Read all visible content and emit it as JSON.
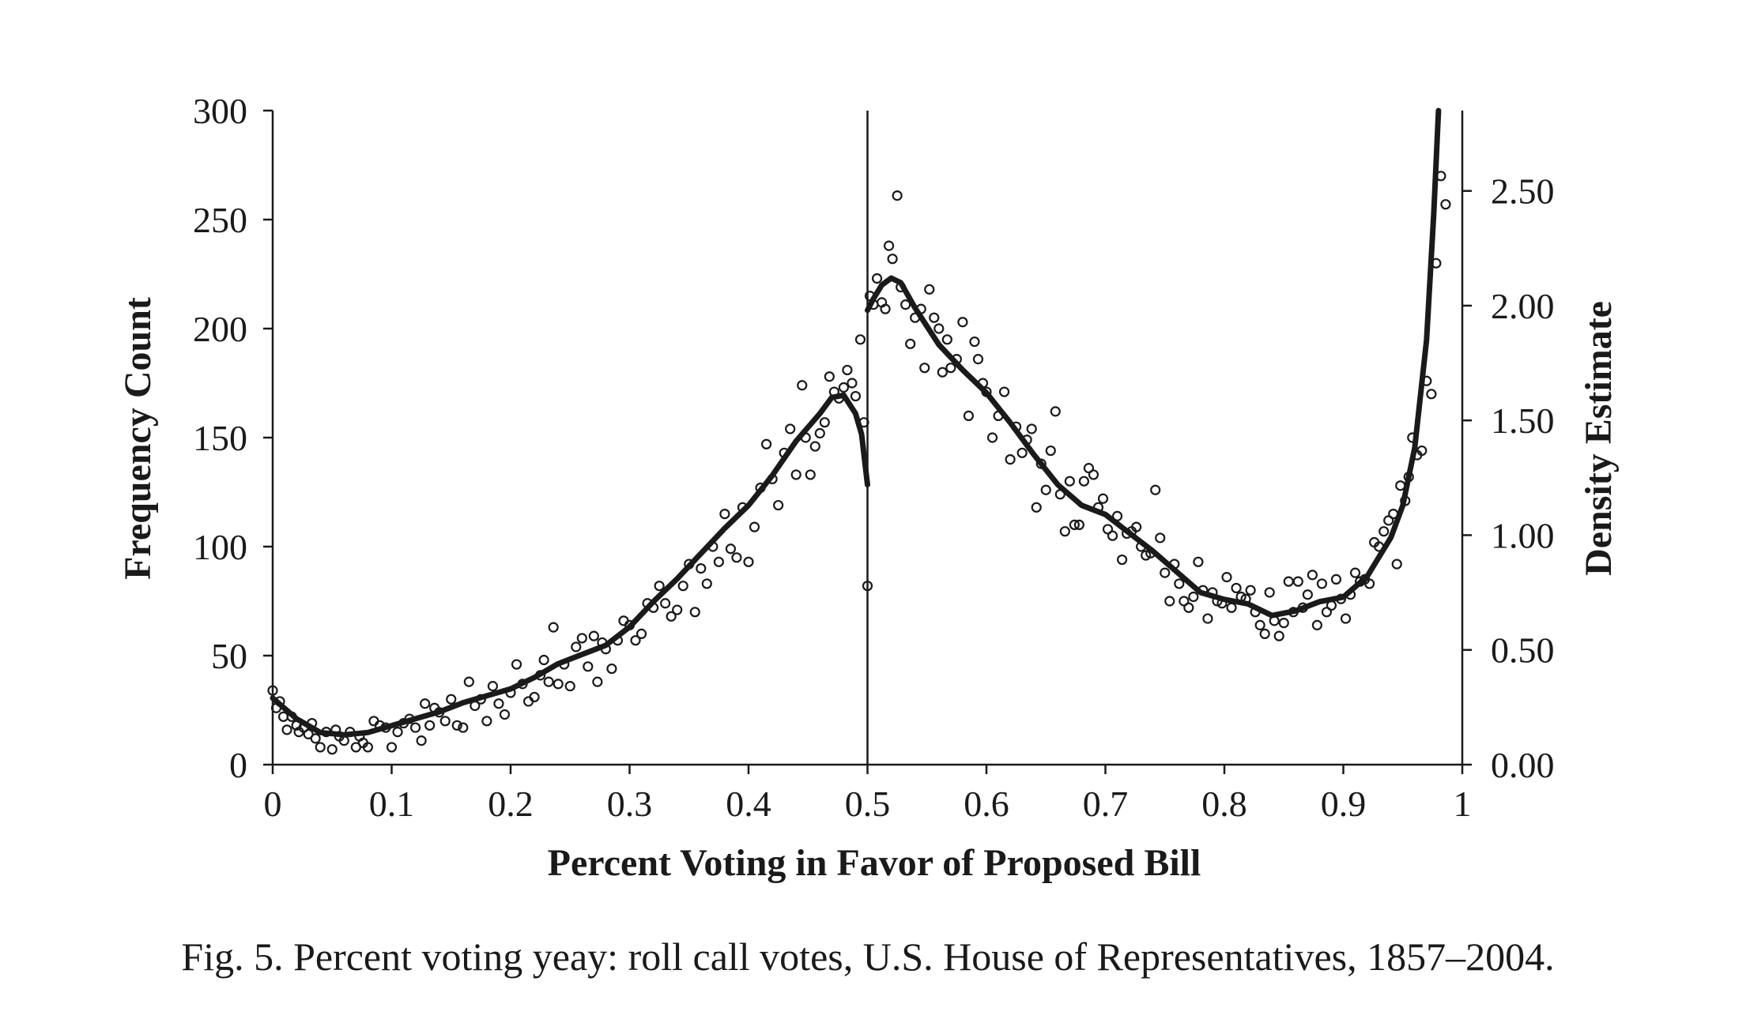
{
  "chart_data": {
    "type": "scatter",
    "caption": "Fig. 5. Percent voting yeay: roll call votes, U.S. House of Representatives, 1857–2004.",
    "xlabel": "Percent Voting in Favor of Proposed Bill",
    "ylabel": "Frequency Count",
    "y2label": "Density Estimate",
    "xlim": [
      0,
      1
    ],
    "ylim": [
      0,
      300
    ],
    "y2lim": [
      0,
      2.85
    ],
    "x_ticks": [
      "0",
      "0.1",
      "0.2",
      "0.3",
      "0.4",
      "0.5",
      "0.6",
      "0.7",
      "0.8",
      "0.9",
      "1"
    ],
    "y_ticks": [
      "0",
      "50",
      "100",
      "150",
      "200",
      "250",
      "300"
    ],
    "y2_ticks": [
      "0.00",
      "0.50",
      "1.00",
      "1.50",
      "2.00",
      "2.50"
    ],
    "cutoff_x": 0.5,
    "grid": false,
    "series": [
      {
        "kind": "scatter",
        "marker": "open-circle",
        "points": [
          [
            0.0,
            34
          ],
          [
            0.003,
            26
          ],
          [
            0.006,
            29
          ],
          [
            0.009,
            22
          ],
          [
            0.012,
            16
          ],
          [
            0.016,
            22
          ],
          [
            0.02,
            18
          ],
          [
            0.022,
            15
          ],
          [
            0.026,
            17
          ],
          [
            0.03,
            14
          ],
          [
            0.033,
            19
          ],
          [
            0.036,
            12
          ],
          [
            0.04,
            8
          ],
          [
            0.045,
            15
          ],
          [
            0.05,
            7
          ],
          [
            0.053,
            16
          ],
          [
            0.056,
            13
          ],
          [
            0.06,
            11
          ],
          [
            0.065,
            15
          ],
          [
            0.07,
            8
          ],
          [
            0.073,
            13
          ],
          [
            0.076,
            10
          ],
          [
            0.08,
            8
          ],
          [
            0.085,
            20
          ],
          [
            0.09,
            18
          ],
          [
            0.095,
            17
          ],
          [
            0.1,
            8
          ],
          [
            0.105,
            15
          ],
          [
            0.11,
            19
          ],
          [
            0.115,
            21
          ],
          [
            0.12,
            17
          ],
          [
            0.125,
            11
          ],
          [
            0.128,
            28
          ],
          [
            0.132,
            18
          ],
          [
            0.136,
            26
          ],
          [
            0.14,
            24
          ],
          [
            0.145,
            20
          ],
          [
            0.15,
            30
          ],
          [
            0.155,
            18
          ],
          [
            0.16,
            17
          ],
          [
            0.165,
            38
          ],
          [
            0.17,
            27
          ],
          [
            0.175,
            30
          ],
          [
            0.18,
            20
          ],
          [
            0.185,
            36
          ],
          [
            0.19,
            28
          ],
          [
            0.195,
            23
          ],
          [
            0.2,
            33
          ],
          [
            0.205,
            46
          ],
          [
            0.21,
            37
          ],
          [
            0.215,
            29
          ],
          [
            0.22,
            31
          ],
          [
            0.225,
            41
          ],
          [
            0.228,
            48
          ],
          [
            0.232,
            38
          ],
          [
            0.236,
            63
          ],
          [
            0.24,
            37
          ],
          [
            0.245,
            46
          ],
          [
            0.25,
            36
          ],
          [
            0.255,
            54
          ],
          [
            0.26,
            58
          ],
          [
            0.265,
            45
          ],
          [
            0.27,
            59
          ],
          [
            0.273,
            38
          ],
          [
            0.277,
            56
          ],
          [
            0.28,
            53
          ],
          [
            0.285,
            44
          ],
          [
            0.29,
            57
          ],
          [
            0.295,
            66
          ],
          [
            0.3,
            64
          ],
          [
            0.305,
            57
          ],
          [
            0.31,
            60
          ],
          [
            0.315,
            74
          ],
          [
            0.32,
            72
          ],
          [
            0.325,
            82
          ],
          [
            0.33,
            74
          ],
          [
            0.335,
            68
          ],
          [
            0.34,
            71
          ],
          [
            0.345,
            82
          ],
          [
            0.35,
            92
          ],
          [
            0.355,
            70
          ],
          [
            0.36,
            90
          ],
          [
            0.365,
            83
          ],
          [
            0.37,
            100
          ],
          [
            0.375,
            93
          ],
          [
            0.38,
            115
          ],
          [
            0.385,
            99
          ],
          [
            0.39,
            95
          ],
          [
            0.395,
            118
          ],
          [
            0.4,
            93
          ],
          [
            0.405,
            109
          ],
          [
            0.41,
            127
          ],
          [
            0.415,
            147
          ],
          [
            0.42,
            131
          ],
          [
            0.425,
            119
          ],
          [
            0.43,
            143
          ],
          [
            0.435,
            154
          ],
          [
            0.44,
            133
          ],
          [
            0.445,
            174
          ],
          [
            0.448,
            150
          ],
          [
            0.452,
            133
          ],
          [
            0.456,
            146
          ],
          [
            0.46,
            152
          ],
          [
            0.464,
            157
          ],
          [
            0.468,
            178
          ],
          [
            0.472,
            171
          ],
          [
            0.476,
            168
          ],
          [
            0.48,
            173
          ],
          [
            0.483,
            181
          ],
          [
            0.487,
            175
          ],
          [
            0.49,
            169
          ],
          [
            0.494,
            195
          ],
          [
            0.497,
            157
          ],
          [
            0.5,
            82
          ],
          [
            0.502,
            215
          ],
          [
            0.505,
            211
          ],
          [
            0.508,
            223
          ],
          [
            0.512,
            212
          ],
          [
            0.515,
            209
          ],
          [
            0.518,
            238
          ],
          [
            0.521,
            232
          ],
          [
            0.525,
            261
          ],
          [
            0.528,
            219
          ],
          [
            0.532,
            211
          ],
          [
            0.536,
            193
          ],
          [
            0.54,
            205
          ],
          [
            0.545,
            209
          ],
          [
            0.548,
            182
          ],
          [
            0.552,
            218
          ],
          [
            0.556,
            205
          ],
          [
            0.56,
            200
          ],
          [
            0.563,
            180
          ],
          [
            0.567,
            195
          ],
          [
            0.57,
            182
          ],
          [
            0.575,
            186
          ],
          [
            0.58,
            203
          ],
          [
            0.585,
            160
          ],
          [
            0.59,
            194
          ],
          [
            0.593,
            186
          ],
          [
            0.597,
            175
          ],
          [
            0.6,
            171
          ],
          [
            0.605,
            150
          ],
          [
            0.61,
            160
          ],
          [
            0.615,
            171
          ],
          [
            0.62,
            140
          ],
          [
            0.625,
            155
          ],
          [
            0.63,
            143
          ],
          [
            0.634,
            149
          ],
          [
            0.638,
            154
          ],
          [
            0.642,
            118
          ],
          [
            0.646,
            138
          ],
          [
            0.65,
            126
          ],
          [
            0.654,
            144
          ],
          [
            0.658,
            162
          ],
          [
            0.662,
            124
          ],
          [
            0.666,
            107
          ],
          [
            0.67,
            130
          ],
          [
            0.674,
            110
          ],
          [
            0.678,
            110
          ],
          [
            0.682,
            130
          ],
          [
            0.686,
            136
          ],
          [
            0.69,
            133
          ],
          [
            0.694,
            118
          ],
          [
            0.698,
            122
          ],
          [
            0.702,
            108
          ],
          [
            0.706,
            105
          ],
          [
            0.71,
            114
          ],
          [
            0.714,
            94
          ],
          [
            0.718,
            106
          ],
          [
            0.722,
            107
          ],
          [
            0.726,
            109
          ],
          [
            0.73,
            100
          ],
          [
            0.734,
            96
          ],
          [
            0.738,
            97
          ],
          [
            0.742,
            126
          ],
          [
            0.746,
            104
          ],
          [
            0.75,
            88
          ],
          [
            0.754,
            75
          ],
          [
            0.758,
            92
          ],
          [
            0.762,
            83
          ],
          [
            0.766,
            75
          ],
          [
            0.77,
            72
          ],
          [
            0.774,
            77
          ],
          [
            0.778,
            93
          ],
          [
            0.782,
            80
          ],
          [
            0.786,
            67
          ],
          [
            0.79,
            79
          ],
          [
            0.794,
            75
          ],
          [
            0.798,
            74
          ],
          [
            0.802,
            86
          ],
          [
            0.806,
            72
          ],
          [
            0.81,
            81
          ],
          [
            0.814,
            77
          ],
          [
            0.818,
            76
          ],
          [
            0.822,
            80
          ],
          [
            0.826,
            70
          ],
          [
            0.83,
            64
          ],
          [
            0.834,
            60
          ],
          [
            0.838,
            79
          ],
          [
            0.842,
            66
          ],
          [
            0.846,
            59
          ],
          [
            0.85,
            65
          ],
          [
            0.854,
            84
          ],
          [
            0.858,
            70
          ],
          [
            0.862,
            84
          ],
          [
            0.866,
            72
          ],
          [
            0.87,
            78
          ],
          [
            0.874,
            87
          ],
          [
            0.878,
            64
          ],
          [
            0.882,
            83
          ],
          [
            0.886,
            70
          ],
          [
            0.89,
            73
          ],
          [
            0.894,
            85
          ],
          [
            0.898,
            76
          ],
          [
            0.902,
            67
          ],
          [
            0.906,
            78
          ],
          [
            0.91,
            88
          ],
          [
            0.914,
            84
          ],
          [
            0.918,
            85
          ],
          [
            0.922,
            83
          ],
          [
            0.926,
            102
          ],
          [
            0.93,
            100
          ],
          [
            0.934,
            107
          ],
          [
            0.938,
            112
          ],
          [
            0.942,
            115
          ],
          [
            0.945,
            92
          ],
          [
            0.948,
            128
          ],
          [
            0.952,
            121
          ],
          [
            0.955,
            132
          ],
          [
            0.958,
            150
          ],
          [
            0.962,
            142
          ],
          [
            0.966,
            144
          ],
          [
            0.97,
            176
          ],
          [
            0.974,
            170
          ],
          [
            0.978,
            230
          ],
          [
            0.982,
            270
          ],
          [
            0.986,
            257
          ]
        ]
      },
      {
        "kind": "density-line",
        "axis": "right",
        "segments": [
          [
            [
              0.0,
              0.29
            ],
            [
              0.02,
              0.2
            ],
            [
              0.04,
              0.14
            ],
            [
              0.06,
              0.13
            ],
            [
              0.08,
              0.14
            ],
            [
              0.1,
              0.17
            ],
            [
              0.12,
              0.2
            ],
            [
              0.14,
              0.23
            ],
            [
              0.16,
              0.27
            ],
            [
              0.18,
              0.3
            ],
            [
              0.2,
              0.33
            ],
            [
              0.22,
              0.38
            ],
            [
              0.24,
              0.44
            ],
            [
              0.26,
              0.48
            ],
            [
              0.28,
              0.52
            ],
            [
              0.3,
              0.6
            ],
            [
              0.32,
              0.71
            ],
            [
              0.34,
              0.81
            ],
            [
              0.36,
              0.92
            ],
            [
              0.38,
              1.03
            ],
            [
              0.4,
              1.13
            ],
            [
              0.42,
              1.26
            ],
            [
              0.44,
              1.41
            ],
            [
              0.46,
              1.53
            ],
            [
              0.47,
              1.6
            ],
            [
              0.48,
              1.61
            ],
            [
              0.49,
              1.53
            ],
            [
              0.495,
              1.44
            ],
            [
              0.5,
              1.22
            ]
          ],
          [
            [
              0.5,
              1.98
            ],
            [
              0.505,
              2.03
            ],
            [
              0.512,
              2.09
            ],
            [
              0.52,
              2.12
            ],
            [
              0.528,
              2.1
            ],
            [
              0.54,
              1.99
            ],
            [
              0.56,
              1.83
            ],
            [
              0.58,
              1.72
            ],
            [
              0.6,
              1.62
            ],
            [
              0.62,
              1.49
            ],
            [
              0.64,
              1.35
            ],
            [
              0.66,
              1.22
            ],
            [
              0.68,
              1.13
            ],
            [
              0.7,
              1.09
            ],
            [
              0.72,
              1.01
            ],
            [
              0.74,
              0.93
            ],
            [
              0.76,
              0.84
            ],
            [
              0.78,
              0.75
            ],
            [
              0.8,
              0.72
            ],
            [
              0.82,
              0.7
            ],
            [
              0.84,
              0.65
            ],
            [
              0.86,
              0.67
            ],
            [
              0.88,
              0.71
            ],
            [
              0.9,
              0.73
            ],
            [
              0.92,
              0.82
            ],
            [
              0.94,
              0.99
            ],
            [
              0.95,
              1.13
            ],
            [
              0.96,
              1.38
            ],
            [
              0.97,
              1.85
            ],
            [
              0.976,
              2.4
            ],
            [
              0.98,
              2.86
            ]
          ]
        ]
      }
    ]
  }
}
